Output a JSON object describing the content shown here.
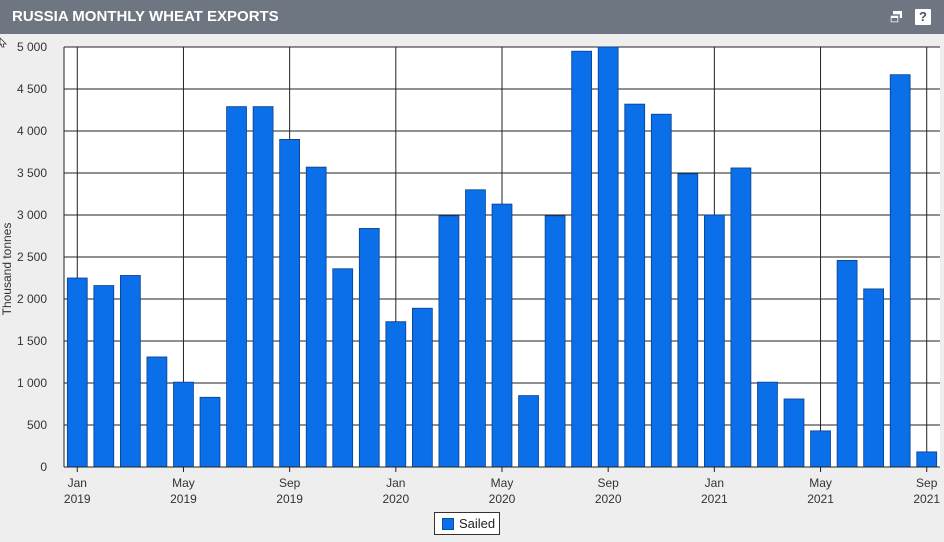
{
  "header": {
    "title": "RUSSIA MONTHLY WHEAT EXPORTS",
    "help_label": "?"
  },
  "icons": {
    "restore": "restore-window-icon",
    "help": "help-icon",
    "cursor": "cursor-icon"
  },
  "colors": {
    "bar": "#0a6fe8",
    "bar_border": "#0a3f8a",
    "header": "#6e7681"
  },
  "chart_data": {
    "type": "bar",
    "title": "RUSSIA MONTHLY WHEAT EXPORTS",
    "ylabel": "Thousand tonnes",
    "ylim": [
      0,
      5000
    ],
    "yticks": [
      0,
      500,
      1000,
      1500,
      2000,
      2500,
      3000,
      3500,
      4000,
      4500,
      5000
    ],
    "ytick_labels": [
      "0",
      "500",
      "1 000",
      "1 500",
      "2 000",
      "2 500",
      "3 000",
      "3 500",
      "4 000",
      "4 500",
      "5 000"
    ],
    "grid": true,
    "legend": "bottom-center",
    "categories": [
      "2019-01",
      "2019-02",
      "2019-03",
      "2019-04",
      "2019-05",
      "2019-06",
      "2019-07",
      "2019-08",
      "2019-09",
      "2019-10",
      "2019-11",
      "2019-12",
      "2020-01",
      "2020-02",
      "2020-03",
      "2020-04",
      "2020-05",
      "2020-06",
      "2020-07",
      "2020-08",
      "2020-09",
      "2020-10",
      "2020-11",
      "2020-12",
      "2021-01",
      "2021-02",
      "2021-03",
      "2021-04",
      "2021-05",
      "2021-06",
      "2021-07",
      "2021-08",
      "2021-09"
    ],
    "xtick_labels": [
      {
        "index": 0,
        "month": "Jan",
        "year": "2019"
      },
      {
        "index": 4,
        "month": "May",
        "year": "2019"
      },
      {
        "index": 8,
        "month": "Sep",
        "year": "2019"
      },
      {
        "index": 12,
        "month": "Jan",
        "year": "2020"
      },
      {
        "index": 16,
        "month": "May",
        "year": "2020"
      },
      {
        "index": 20,
        "month": "Sep",
        "year": "2020"
      },
      {
        "index": 24,
        "month": "Jan",
        "year": "2021"
      },
      {
        "index": 28,
        "month": "May",
        "year": "2021"
      },
      {
        "index": 32,
        "month": "Sep",
        "year": "2021"
      }
    ],
    "series": [
      {
        "name": "Sailed",
        "values": [
          2250,
          2160,
          2280,
          1310,
          1010,
          830,
          4290,
          4290,
          3900,
          3570,
          2360,
          2840,
          1730,
          1890,
          2990,
          3300,
          3130,
          850,
          2990,
          4950,
          5000,
          4320,
          4200,
          3490,
          3000,
          3560,
          1010,
          810,
          430,
          2460,
          2120,
          4670,
          180
        ]
      }
    ]
  }
}
